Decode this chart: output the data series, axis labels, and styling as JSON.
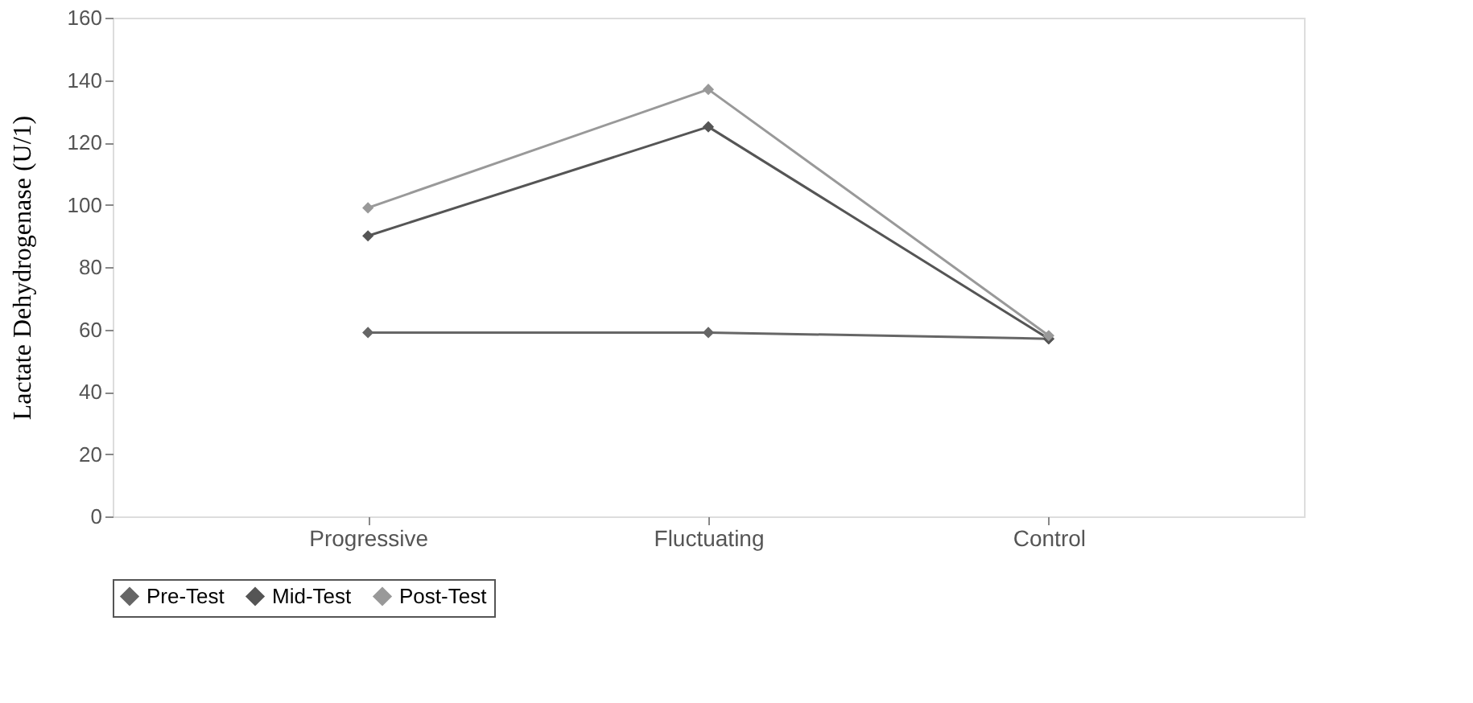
{
  "chart_data": {
    "type": "line",
    "ylabel": "Lactate Dehydrogenase (U/1)",
    "categories": [
      "Progressive",
      "Fluctuating",
      "Control"
    ],
    "series": [
      {
        "name": "Pre-Test",
        "color": "#666666",
        "values": [
          59,
          59,
          57
        ]
      },
      {
        "name": "Mid-Test",
        "color": "#555555",
        "values": [
          90,
          125,
          57
        ]
      },
      {
        "name": "Post-Test",
        "color": "#999999",
        "values": [
          99,
          137,
          58
        ]
      }
    ],
    "ylim": [
      0,
      160
    ],
    "yticks": [
      0,
      20,
      40,
      60,
      80,
      100,
      120,
      140,
      160
    ],
    "grid": false,
    "legend": "bottom",
    "marker": "diamond",
    "line_style": "solid"
  }
}
